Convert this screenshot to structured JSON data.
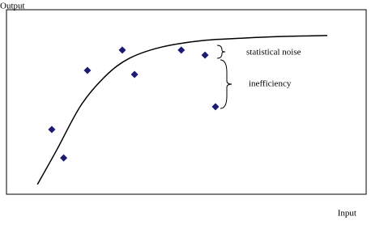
{
  "chart_data": {
    "type": "scatter",
    "y_label": "Output",
    "x_label": "Input",
    "xlim": [
      0,
      100
    ],
    "ylim": [
      0,
      100
    ],
    "x": [
      12.6,
      15.9,
      22.5,
      32.2,
      35.6,
      48.6,
      55.2,
      58.1
    ],
    "y": [
      35.1,
      19.7,
      67.1,
      78.1,
      64.9,
      78.1,
      75.4,
      47.4
    ],
    "color": "#1b1b72",
    "curve": {
      "x": [
        8.6,
        14.0,
        20.7,
        27.5,
        34.2,
        43.2,
        54.5,
        65.8,
        77.0,
        89.2
      ],
      "y": [
        5.3,
        24.1,
        48.2,
        64.0,
        73.7,
        79.8,
        83.3,
        84.6,
        85.5,
        86.0
      ],
      "color": "#000000"
    },
    "annotations": [
      "statistical noise",
      "inefficiency"
    ]
  }
}
